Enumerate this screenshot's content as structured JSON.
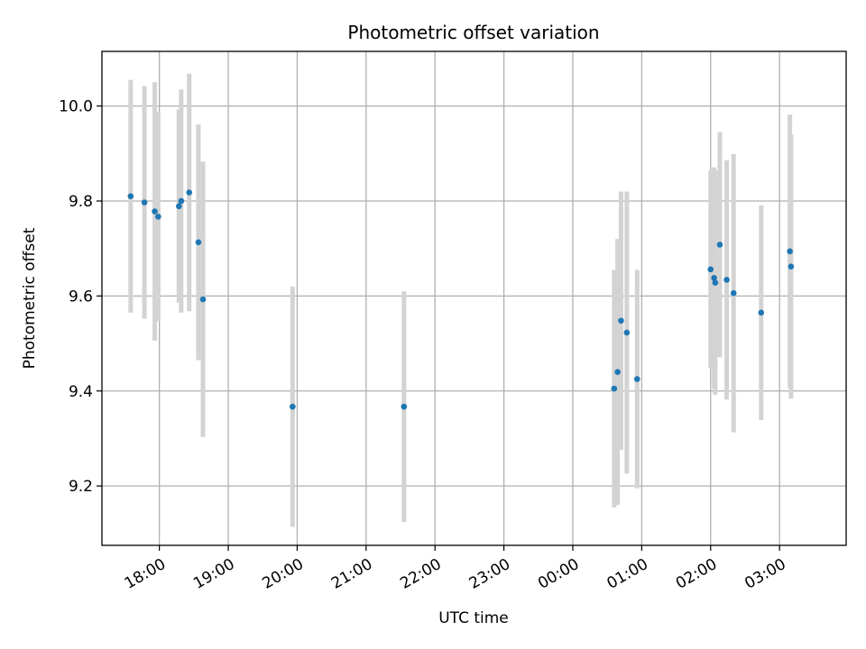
{
  "chart_data": {
    "type": "scatter",
    "title": "Photometric offset variation",
    "xlabel": "UTC time",
    "ylabel": "Photometric offset",
    "x_axis_kind": "time (hours spanning midnight)",
    "xlim": [
      "17:10",
      "03:58"
    ],
    "ylim": [
      9.075,
      10.115
    ],
    "xticks": [
      "18:00",
      "19:00",
      "20:00",
      "21:00",
      "22:00",
      "23:00",
      "00:00",
      "01:00",
      "02:00",
      "03:00"
    ],
    "yticks": [
      9.2,
      9.4,
      9.6,
      9.8,
      10.0
    ],
    "yticklabels": [
      "9.2",
      "9.4",
      "9.6",
      "9.8",
      "10.0"
    ],
    "grid": true,
    "colors": {
      "marker": "#1f77b4",
      "errorbar": "#d3d3d3"
    },
    "points": [
      {
        "time": "17:35",
        "y": 9.81,
        "err": 0.245
      },
      {
        "time": "17:47",
        "y": 9.797,
        "err": 0.245
      },
      {
        "time": "17:56",
        "y": 9.778,
        "err": 0.272
      },
      {
        "time": "17:59",
        "y": 9.767,
        "err": 0.22
      },
      {
        "time": "18:17",
        "y": 9.789,
        "err": 0.203
      },
      {
        "time": "18:19",
        "y": 9.8,
        "err": 0.235
      },
      {
        "time": "18:26",
        "y": 9.818,
        "err": 0.25
      },
      {
        "time": "18:34",
        "y": 9.713,
        "err": 0.248
      },
      {
        "time": "18:38",
        "y": 9.593,
        "err": 0.29
      },
      {
        "time": "19:56",
        "y": 9.367,
        "err": 0.253
      },
      {
        "time": "21:33",
        "y": 9.367,
        "err": 0.243
      },
      {
        "time": "00:36",
        "y": 9.405,
        "err": 0.25
      },
      {
        "time": "00:39",
        "y": 9.44,
        "err": 0.28
      },
      {
        "time": "00:42",
        "y": 9.548,
        "err": 0.272
      },
      {
        "time": "00:47",
        "y": 9.523,
        "err": 0.297
      },
      {
        "time": "00:56",
        "y": 9.425,
        "err": 0.23
      },
      {
        "time": "02:00",
        "y": 9.656,
        "err": 0.208
      },
      {
        "time": "02:03",
        "y": 9.638,
        "err": 0.233
      },
      {
        "time": "02:04",
        "y": 9.628,
        "err": 0.236
      },
      {
        "time": "02:08",
        "y": 9.708,
        "err": 0.237
      },
      {
        "time": "02:14",
        "y": 9.634,
        "err": 0.252
      },
      {
        "time": "02:20",
        "y": 9.606,
        "err": 0.293
      },
      {
        "time": "02:44",
        "y": 9.565,
        "err": 0.226
      },
      {
        "time": "03:09",
        "y": 9.694,
        "err": 0.288
      },
      {
        "time": "03:10",
        "y": 9.662,
        "err": 0.278
      }
    ]
  }
}
